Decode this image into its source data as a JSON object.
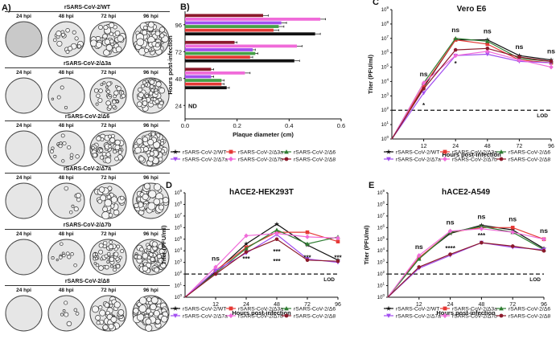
{
  "panel_labels": {
    "a": "A)",
    "b": "B)",
    "c": "C)",
    "d": "D)",
    "e": "E)"
  },
  "panel_a": {
    "rows": [
      {
        "title": "rSARS-CoV-2/WT",
        "density": [
          0,
          0.25,
          0.6,
          0.95
        ],
        "sizes": [
          0,
          3,
          3.5,
          4
        ]
      },
      {
        "title": "rSARS-CoV-2/Δ3a",
        "density": [
          0,
          0.05,
          0.5,
          0.8
        ],
        "sizes": [
          0,
          2,
          2.5,
          3
        ]
      },
      {
        "title": "rSARS-CoV-2/Δ6",
        "density": [
          0,
          0.2,
          0.75,
          0.95
        ],
        "sizes": [
          0,
          2,
          3,
          3.5
        ]
      },
      {
        "title": "rSARS-CoV-2/Δ7a",
        "density": [
          0,
          0.1,
          0.45,
          0.7
        ],
        "sizes": [
          0,
          2.5,
          4,
          4
        ]
      },
      {
        "title": "rSARS-CoV-2/Δ7b",
        "density": [
          0,
          0.15,
          0.7,
          0.95
        ],
        "sizes": [
          0,
          2,
          2.5,
          3
        ]
      },
      {
        "title": "rSARS-CoV-2/Δ8",
        "density": [
          0,
          0.1,
          0.55,
          0.9
        ],
        "sizes": [
          0,
          2.5,
          3.5,
          4
        ]
      }
    ],
    "timepoints": [
      "24 hpi",
      "48 hpi",
      "72 hpi",
      "96 hpi"
    ]
  },
  "chart_data": [
    {
      "panel": "B",
      "type": "bar",
      "orientation": "horizontal",
      "xlabel": "Plaque diameter (cm)",
      "ylabel": "Hours post-infection",
      "xlim": [
        0,
        0.6
      ],
      "xticks": [
        "0.0",
        "0.2",
        "0.4",
        "0.6"
      ],
      "categories": [
        "24",
        "48",
        "72",
        "96"
      ],
      "annotations": [
        {
          "category": "24",
          "text": "ND"
        }
      ],
      "series": [
        {
          "name": "rSARS-CoV-2/WT",
          "color": "#111111",
          "values": [
            null,
            0.16,
            0.42,
            0.5
          ],
          "errors": [
            0,
            0.01,
            0.02,
            0.02
          ]
        },
        {
          "name": "rSARS-CoV-2/Δ3a",
          "color": "#e53935",
          "values": [
            null,
            0.14,
            0.25,
            0.34
          ],
          "errors": [
            0,
            0.01,
            0.01,
            0.02
          ]
        },
        {
          "name": "rSARS-CoV-2/Δ6",
          "color": "#43a047",
          "values": [
            null,
            0.14,
            0.27,
            0.36
          ],
          "errors": [
            0,
            0.01,
            0.01,
            0.02
          ]
        },
        {
          "name": "rSARS-CoV-2/Δ7a",
          "color": "#a24ef0",
          "values": [
            null,
            0.1,
            0.26,
            0.37
          ],
          "errors": [
            0,
            0.01,
            0.01,
            0.02
          ]
        },
        {
          "name": "rSARS-CoV-2/Δ7b",
          "color": "#f06bd9",
          "values": [
            null,
            0.23,
            0.43,
            0.52
          ],
          "errors": [
            0,
            0.02,
            0.02,
            0.02
          ]
        },
        {
          "name": "rSARS-CoV-2/Δ8",
          "color": "#8b1a2b",
          "values": [
            null,
            0.1,
            0.19,
            0.3
          ],
          "errors": [
            0,
            0.01,
            0.01,
            0.02
          ]
        }
      ]
    },
    {
      "panel": "C",
      "type": "line",
      "title": "Vero E6",
      "xlabel": "Hours post-infection",
      "ylabel": "Titer (PFU/ml)",
      "x": [
        0,
        12,
        24,
        48,
        72,
        96
      ],
      "xticks": [
        "12",
        "24",
        "48",
        "72",
        "96"
      ],
      "yscale": "log",
      "ylim": [
        0,
        9
      ],
      "lod": 2,
      "lod_label": "LOD",
      "sig_labels": [
        {
          "x": 12,
          "text": "ns"
        },
        {
          "x": 24,
          "text": "ns"
        },
        {
          "x": 48,
          "text": "ns"
        },
        {
          "x": 72,
          "text": "ns"
        },
        {
          "x": 96,
          "text": "ns"
        }
      ],
      "stars": [
        {
          "x": 12,
          "text": "*",
          "y": 2.4
        },
        {
          "x": 24,
          "text": "*",
          "y": 5.3
        }
      ],
      "series": [
        {
          "name": "rSARS-CoV-2/WT",
          "values": [
            0,
            3.6,
            6.9,
            6.9,
            5.8,
            5.5
          ]
        },
        {
          "name": "rSARS-CoV-2/Δ3a",
          "values": [
            0,
            3.7,
            6.9,
            6.6,
            5.5,
            5.3
          ]
        },
        {
          "name": "rSARS-CoV-2/Δ6",
          "values": [
            0,
            3.9,
            7.0,
            6.8,
            5.6,
            5.4
          ]
        },
        {
          "name": "rSARS-CoV-2/Δ7a",
          "values": [
            0,
            3.2,
            5.8,
            5.9,
            5.4,
            5.3
          ]
        },
        {
          "name": "rSARS-CoV-2/Δ7b",
          "values": [
            0,
            3.9,
            5.8,
            6.1,
            5.5,
            5.0
          ]
        },
        {
          "name": "rSARS-CoV-2/Δ8",
          "values": [
            0,
            3.5,
            6.2,
            6.3,
            5.7,
            5.4
          ]
        }
      ]
    },
    {
      "panel": "D",
      "type": "line",
      "title": "hACE2-HEK293T",
      "xlabel": "Hours post-infection",
      "ylabel": "Titer (PFU/ml)",
      "x": [
        0,
        12,
        24,
        48,
        72,
        96
      ],
      "xticks": [
        "12",
        "24",
        "48",
        "72",
        "96"
      ],
      "yscale": "log",
      "ylim": [
        0,
        9
      ],
      "lod": 2,
      "lod_label": "LOD",
      "sig_labels": [
        {
          "x": 12,
          "text": "ns"
        }
      ],
      "stars": [
        {
          "x": 24,
          "text": "***",
          "y": 3.4
        },
        {
          "x": 48,
          "text": "***",
          "y": 4.0
        },
        {
          "x": 48,
          "text": "***",
          "y": 3.2
        },
        {
          "x": 72,
          "text": "***",
          "y": 3.5
        },
        {
          "x": 96,
          "text": "***",
          "y": 3.5
        }
      ],
      "series": [
        {
          "name": "rSARS-CoV-2/WT",
          "values": [
            0,
            2.2,
            4.6,
            6.3,
            4.5,
            3.2
          ]
        },
        {
          "name": "rSARS-CoV-2/Δ3a",
          "values": [
            0,
            2.3,
            4.3,
            5.6,
            5.6,
            4.8
          ]
        },
        {
          "name": "rSARS-CoV-2/Δ6",
          "values": [
            0,
            2.1,
            4.2,
            5.8,
            4.6,
            5.2
          ]
        },
        {
          "name": "rSARS-CoV-2/Δ7a",
          "values": [
            0,
            2.3,
            3.8,
            5.4,
            3.3,
            3.0
          ]
        },
        {
          "name": "rSARS-CoV-2/Δ7b",
          "values": [
            0,
            2.6,
            5.3,
            5.5,
            5.2,
            5.1
          ]
        },
        {
          "name": "rSARS-CoV-2/Δ8",
          "values": [
            0,
            2.0,
            3.9,
            5.0,
            3.2,
            3.1
          ]
        }
      ]
    },
    {
      "panel": "E",
      "type": "line",
      "title": "hACE2-A549",
      "xlabel": "Hours post-infection",
      "ylabel": "Titer (PFU/ml)",
      "x": [
        0,
        12,
        24,
        48,
        72,
        96
      ],
      "xticks": [
        "12",
        "24",
        "48",
        "72",
        "96"
      ],
      "yscale": "log",
      "ylim": [
        0,
        9
      ],
      "lod": 2,
      "lod_label": "LOD",
      "sig_labels": [
        {
          "x": 12,
          "text": "ns"
        },
        {
          "x": 24,
          "text": "ns"
        },
        {
          "x": 48,
          "text": "ns"
        },
        {
          "x": 72,
          "text": "ns"
        },
        {
          "x": 96,
          "text": "ns"
        }
      ],
      "stars": [
        {
          "x": 24,
          "text": "****",
          "y": 4.3
        },
        {
          "x": 48,
          "text": "***",
          "y": 5.4
        }
      ],
      "series": [
        {
          "name": "rSARS-CoV-2/WT",
          "values": [
            0,
            3.4,
            5.5,
            6.2,
            5.8,
            4.2
          ]
        },
        {
          "name": "rSARS-CoV-2/Δ3a",
          "values": [
            0,
            3.4,
            5.6,
            6.0,
            6.0,
            5.0
          ]
        },
        {
          "name": "rSARS-CoV-2/Δ6",
          "values": [
            0,
            3.3,
            5.6,
            6.1,
            5.6,
            4.1
          ]
        },
        {
          "name": "rSARS-CoV-2/Δ7a",
          "values": [
            0,
            2.5,
            3.6,
            4.7,
            4.3,
            4.1
          ]
        },
        {
          "name": "rSARS-CoV-2/Δ7b",
          "values": [
            0,
            3.6,
            5.7,
            5.9,
            5.6,
            5.0
          ]
        },
        {
          "name": "rSARS-CoV-2/Δ8",
          "values": [
            0,
            2.6,
            3.7,
            4.7,
            4.4,
            4.0
          ]
        }
      ]
    }
  ],
  "legend": [
    {
      "name": "rSARS-CoV-2/WT",
      "color": "#111111",
      "marker": "star"
    },
    {
      "name": "rSARS-CoV-2/Δ3a",
      "color": "#e53935",
      "marker": "square"
    },
    {
      "name": "rSARS-CoV-2/Δ6",
      "color": "#2e7d32",
      "marker": "triangle"
    },
    {
      "name": "rSARS-CoV-2/Δ7a",
      "color": "#a24ef0",
      "marker": "triangle-down"
    },
    {
      "name": "rSARS-CoV-2/Δ7b",
      "color": "#f06bd9",
      "marker": "diamond"
    },
    {
      "name": "rSARS-CoV-2/Δ8",
      "color": "#8b1a2b",
      "marker": "circle"
    }
  ]
}
